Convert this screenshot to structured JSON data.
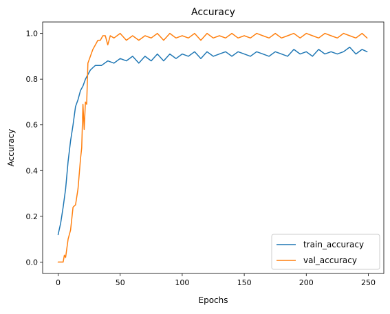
{
  "chart_data": {
    "type": "line",
    "title": "Accuracy",
    "xlabel": "Epochs",
    "ylabel": "Accuracy",
    "xlim": [
      -12.5,
      262.5
    ],
    "ylim": [
      -0.05,
      1.05
    ],
    "xticks": [
      0,
      50,
      100,
      150,
      200,
      250
    ],
    "xtick_labels": [
      "0",
      "50",
      "100",
      "150",
      "200",
      "250"
    ],
    "yticks": [
      0.0,
      0.2,
      0.4,
      0.6,
      0.8,
      1.0
    ],
    "ytick_labels": [
      "0.0",
      "0.2",
      "0.4",
      "0.6",
      "0.8",
      "1.0"
    ],
    "grid": false,
    "legend_position": "lower-right",
    "series": [
      {
        "name": "train_accuracy",
        "color": "#1f77b4",
        "x": [
          0,
          2,
          4,
          6,
          8,
          10,
          12,
          14,
          16,
          18,
          20,
          22,
          24,
          26,
          28,
          30,
          35,
          40,
          45,
          50,
          55,
          60,
          65,
          70,
          75,
          80,
          85,
          90,
          95,
          100,
          105,
          110,
          115,
          120,
          125,
          130,
          135,
          140,
          145,
          150,
          155,
          160,
          165,
          170,
          175,
          180,
          185,
          190,
          195,
          200,
          205,
          210,
          215,
          220,
          225,
          230,
          235,
          240,
          245,
          249
        ],
        "y": [
          0.12,
          0.17,
          0.24,
          0.32,
          0.44,
          0.53,
          0.6,
          0.68,
          0.71,
          0.75,
          0.77,
          0.8,
          0.82,
          0.84,
          0.85,
          0.86,
          0.86,
          0.88,
          0.87,
          0.89,
          0.88,
          0.9,
          0.87,
          0.9,
          0.88,
          0.91,
          0.88,
          0.91,
          0.89,
          0.91,
          0.9,
          0.92,
          0.89,
          0.92,
          0.9,
          0.91,
          0.92,
          0.9,
          0.92,
          0.91,
          0.9,
          0.92,
          0.91,
          0.9,
          0.92,
          0.91,
          0.9,
          0.93,
          0.91,
          0.92,
          0.9,
          0.93,
          0.91,
          0.92,
          0.91,
          0.92,
          0.94,
          0.91,
          0.93,
          0.92
        ]
      },
      {
        "name": "val_accuracy",
        "color": "#ff7f0e",
        "x": [
          0,
          2,
          4,
          5,
          6,
          8,
          10,
          12,
          14,
          16,
          18,
          19,
          20,
          21,
          22,
          23,
          24,
          26,
          28,
          30,
          32,
          34,
          36,
          38,
          40,
          42,
          45,
          50,
          55,
          60,
          65,
          70,
          75,
          80,
          85,
          90,
          95,
          100,
          105,
          110,
          115,
          120,
          125,
          130,
          135,
          140,
          145,
          150,
          155,
          160,
          165,
          170,
          175,
          180,
          185,
          190,
          195,
          200,
          205,
          210,
          215,
          220,
          225,
          230,
          235,
          240,
          245,
          249
        ],
        "y": [
          0.0,
          0.0,
          0.0,
          0.03,
          0.02,
          0.1,
          0.14,
          0.24,
          0.25,
          0.32,
          0.45,
          0.5,
          0.69,
          0.58,
          0.7,
          0.69,
          0.87,
          0.9,
          0.93,
          0.95,
          0.97,
          0.97,
          0.99,
          0.99,
          0.95,
          0.99,
          0.98,
          1.0,
          0.97,
          0.99,
          0.97,
          0.99,
          0.98,
          1.0,
          0.97,
          1.0,
          0.98,
          0.99,
          0.98,
          1.0,
          0.97,
          1.0,
          0.98,
          0.99,
          0.98,
          1.0,
          0.98,
          0.99,
          0.98,
          1.0,
          0.99,
          0.98,
          1.0,
          0.98,
          0.99,
          1.0,
          0.98,
          1.0,
          0.99,
          0.98,
          1.0,
          0.99,
          0.98,
          1.0,
          0.99,
          0.98,
          1.0,
          0.98
        ]
      }
    ]
  }
}
